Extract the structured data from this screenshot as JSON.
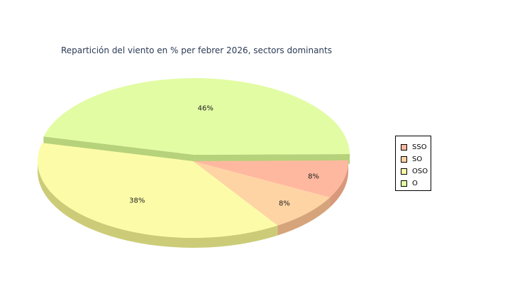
{
  "chart_data": {
    "type": "pie",
    "title": "Repartición del viento en % per febrer 2026, sectors dominants",
    "slices": [
      {
        "label": "SSO",
        "value": 8,
        "text": "8%",
        "color": "#ffb8a0",
        "side": "#d8987c"
      },
      {
        "label": "SO",
        "value": 8,
        "text": "8%",
        "color": "#ffd4a4",
        "side": "#d6a47a"
      },
      {
        "label": "OSO",
        "value": 38,
        "text": "38%",
        "color": "#fcfca8",
        "side": "#cccc78"
      },
      {
        "label": "O",
        "value": 46,
        "text": "46%",
        "color": "#e2fca4",
        "side": "#b6d27a"
      }
    ],
    "legend": "right"
  }
}
